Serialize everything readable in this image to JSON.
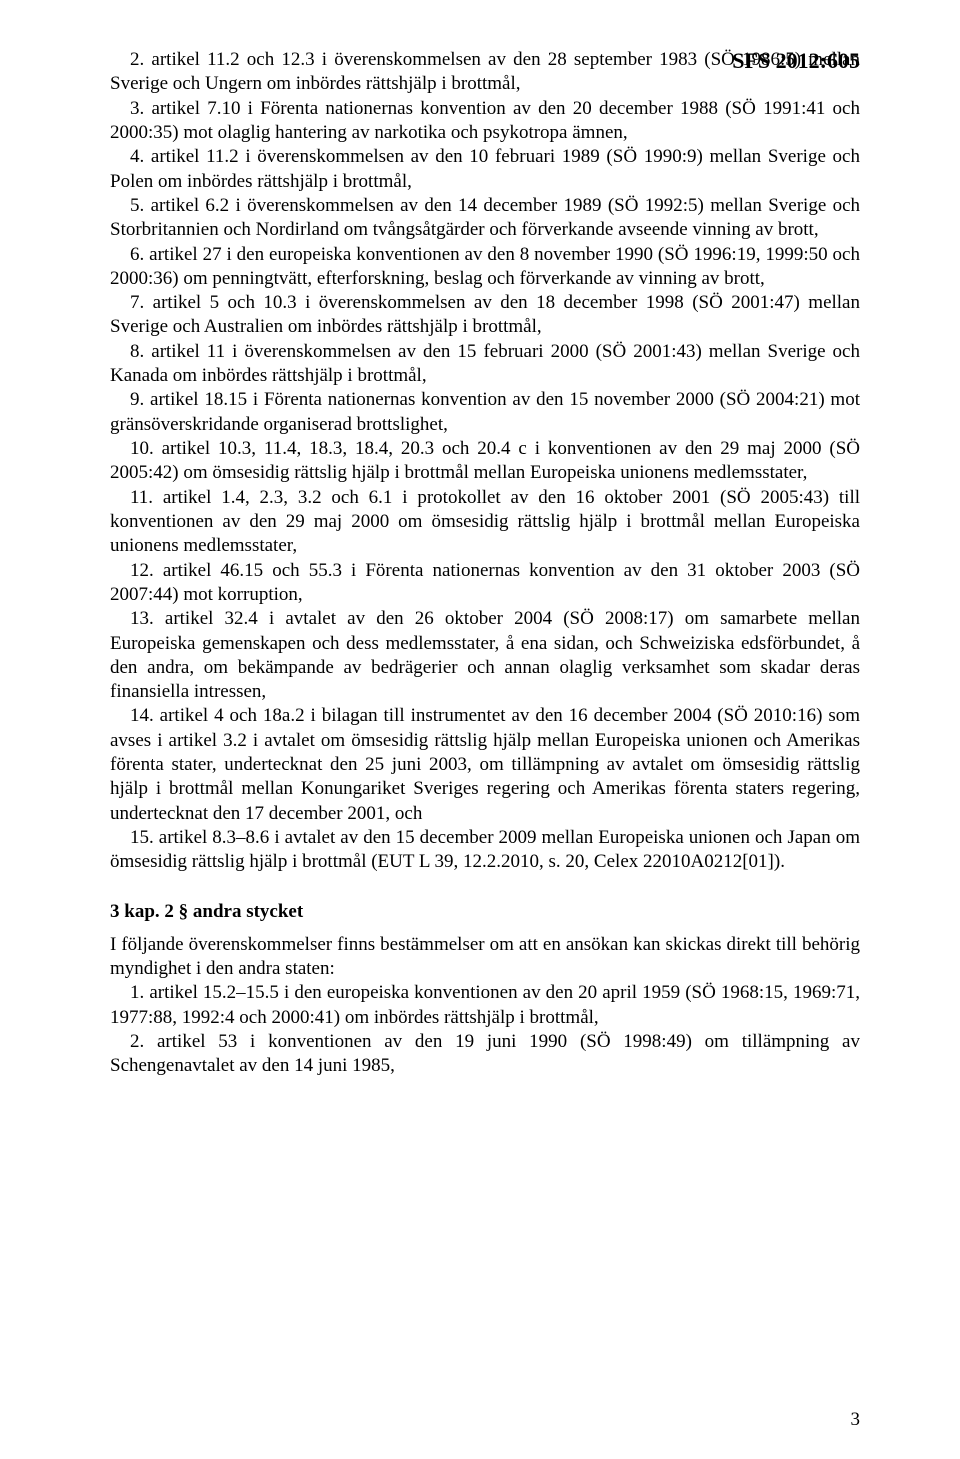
{
  "sfs_header": "SFS 2012:605",
  "paragraphs": [
    "2. artikel 11.2 och 12.3 i överenskommelsen av den 28 september 1983 (SÖ 1986:5) mellan Sverige och Ungern om inbördes rättshjälp i brottmål,",
    "3. artikel 7.10 i Förenta nationernas konvention av den 20 december 1988 (SÖ 1991:41 och 2000:35) mot olaglig hantering av narkotika och psykotropa ämnen,",
    "4. artikel 11.2 i överenskommelsen av den 10 februari 1989 (SÖ 1990:9) mellan Sverige och Polen om inbördes rättshjälp i brottmål,",
    "5. artikel 6.2 i överenskommelsen av den 14 december 1989 (SÖ 1992:5) mellan Sverige och Storbritannien och Nordirland om tvångsåtgärder och förverkande avseende vinning av brott,",
    "6. artikel 27 i den europeiska konventionen av den 8 november 1990 (SÖ 1996:19, 1999:50 och 2000:36) om penningtvätt, efterforskning, beslag och förverkande av vinning av brott,",
    "7. artikel 5 och 10.3 i överenskommelsen av den 18 december 1998 (SÖ 2001:47) mellan Sverige och Australien om inbördes rättshjälp i brottmål,",
    "8. artikel 11 i överenskommelsen av den 15 februari 2000 (SÖ 2001:43) mellan Sverige och Kanada om inbördes rättshjälp i brottmål,",
    "9. artikel 18.15 i Förenta nationernas konvention av den 15 november 2000 (SÖ 2004:21) mot gränsöverskridande organiserad brottslighet,",
    "10. artikel 10.3, 11.4, 18.3, 18.4, 20.3 och 20.4 c i konventionen av den 29 maj 2000 (SÖ 2005:42) om ömsesidig rättslig hjälp i brottmål mellan Europeiska unionens medlemsstater,",
    "11. artikel 1.4, 2.3, 3.2 och 6.1 i protokollet av den 16 oktober 2001 (SÖ 2005:43) till konventionen av den 29 maj 2000 om ömsesidig rättslig hjälp i brottmål mellan Europeiska unionens medlemsstater,",
    "12. artikel 46.15 och 55.3 i Förenta nationernas konvention av den 31 oktober 2003 (SÖ 2007:44) mot korruption,",
    "13. artikel 32.4 i avtalet av den 26 oktober 2004 (SÖ 2008:17) om samarbete mellan Europeiska gemenskapen och dess medlemsstater, å ena sidan, och Schweiziska edsförbundet, å den andra, om bekämpande av bedrägerier och annan olaglig verksamhet som skadar deras finansiella intressen,",
    "14. artikel 4 och 18a.2 i bilagan till instrumentet av den 16 december 2004 (SÖ 2010:16) som avses i artikel 3.2 i avtalet om ömsesidig rättslig hjälp mellan Europeiska unionen och Amerikas förenta stater, undertecknat den 25 juni 2003, om tillämpning av avtalet om ömsesidig rättslig hjälp i brottmål mellan Konungariket Sveriges regering och Amerikas förenta staters regering, undertecknat den 17 december 2001, och",
    "15. artikel 8.3–8.6 i avtalet av den 15 december 2009 mellan Europeiska unionen och Japan om ömsesidig rättslig hjälp i brottmål (EUT L 39, 12.2.2010, s. 20, Celex 22010A0212[01])."
  ],
  "section_heading": "3 kap. 2 § andra stycket",
  "section_text": "I följande överenskommelser finns bestämmelser om att en ansökan kan skickas direkt till behörig myndighet i den andra staten:",
  "section_items": [
    "1. artikel 15.2–15.5 i den europeiska konventionen av den 20 april 1959 (SÖ 1968:15, 1969:71, 1977:88, 1992:4 och 2000:41) om inbördes rättshjälp i brottmål,",
    "2. artikel 53 i konventionen av den 19 juni 1990 (SÖ 1998:49) om tillämpning av Schengenavtalet av den 14 juni 1985,"
  ],
  "page_number": "3"
}
